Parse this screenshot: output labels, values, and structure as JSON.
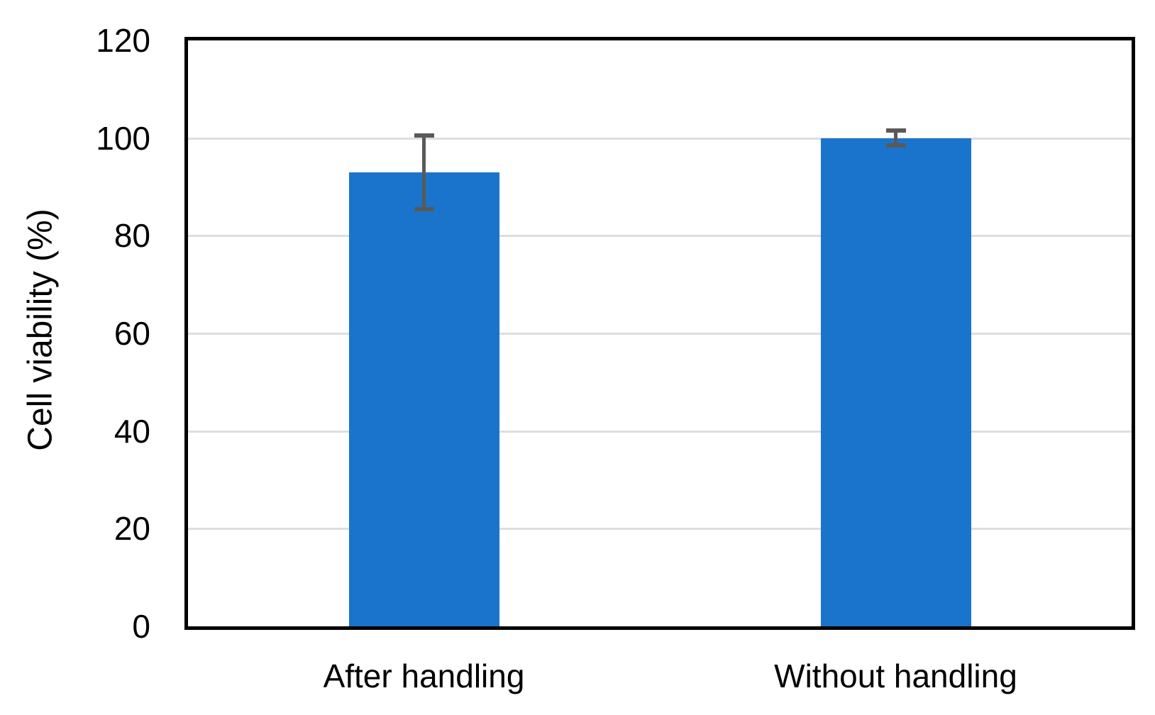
{
  "figure": {
    "background": "#FFFFFF"
  },
  "chart_data": {
    "type": "bar",
    "title": "",
    "xlabel": "",
    "ylabel": "Cell viability (%)",
    "categories": [
      "After handling",
      "Without handling"
    ],
    "values": [
      93,
      100
    ],
    "error_bars": [
      8,
      2
    ],
    "ylim": [
      0,
      120
    ],
    "yticks": [
      0,
      20,
      40,
      60,
      80,
      100,
      120
    ],
    "grid": "horizontal",
    "legend": "none",
    "bar_color": "#1B74CB",
    "error_bar_color": "#595959",
    "axis_color": "#000000",
    "gridline_color": "#DEDEDE"
  }
}
